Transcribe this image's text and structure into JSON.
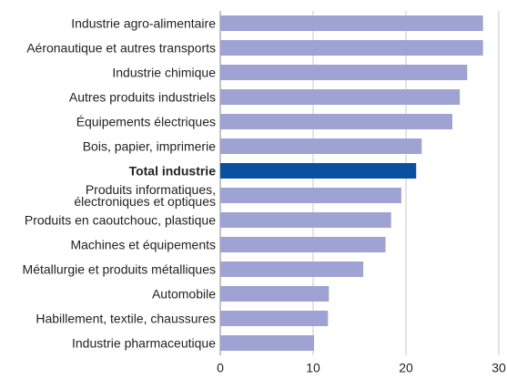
{
  "chart_data": {
    "type": "barh",
    "categories": [
      "Industrie agro-alimentaire",
      "Aéronautique et autres transports",
      "Industrie chimique",
      "Autres produits industriels",
      "Équipements électriques",
      "Bois, papier, imprimerie",
      "Total industrie",
      "Produits informatiques,\nélectroniques et optiques",
      "Produits en caoutchouc, plastique",
      "Machines et équipements",
      "Métallurgie et produits métalliques",
      "Automobile",
      "Habillement, textile, chaussures",
      "Industrie pharmaceutique"
    ],
    "values": [
      28.3,
      28.3,
      26.6,
      25.8,
      25.0,
      21.7,
      21.1,
      19.5,
      18.4,
      17.8,
      15.4,
      11.7,
      11.6,
      10.1
    ],
    "color": "#9ea3d4",
    "colors": [
      "#9ea3d4",
      "#9ea3d4",
      "#9ea3d4",
      "#9ea3d4",
      "#9ea3d4",
      "#9ea3d4",
      "#0b4fa0",
      "#9ea3d4",
      "#9ea3d4",
      "#9ea3d4",
      "#9ea3d4",
      "#9ea3d4",
      "#9ea3d4",
      "#9ea3d4"
    ],
    "xlim": [
      0,
      30
    ],
    "xticks": [
      0,
      10,
      20,
      30
    ],
    "grid": true
  }
}
